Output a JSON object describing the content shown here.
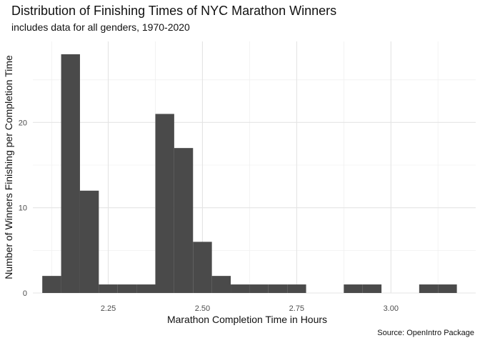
{
  "title": "Distribution of Finishing Times of NYC Marathon Winners",
  "subtitle": "includes data for all genders, 1970-2020",
  "caption": "Source: OpenIntro Package",
  "chart_data": {
    "type": "histogram",
    "xlabel": "Marathon Completion Time in Hours",
    "ylabel": "Number of Winners Finishing per Completion Time",
    "xlim": [
      2.05,
      3.225
    ],
    "ylim": [
      0,
      29.5
    ],
    "x_ticks": [
      2.25,
      2.5,
      2.75,
      3.0
    ],
    "x_tick_labels": [
      "2.25",
      "2.50",
      "2.75",
      "3.00"
    ],
    "y_ticks": [
      0,
      10,
      20
    ],
    "y_tick_labels": [
      "0",
      "10",
      "20"
    ],
    "grid": true,
    "bar_color": "#4a4a4a",
    "bins": [
      {
        "start": 2.075,
        "end": 2.125,
        "count": 2
      },
      {
        "start": 2.125,
        "end": 2.175,
        "count": 28
      },
      {
        "start": 2.175,
        "end": 2.225,
        "count": 12
      },
      {
        "start": 2.225,
        "end": 2.275,
        "count": 1
      },
      {
        "start": 2.275,
        "end": 2.325,
        "count": 1
      },
      {
        "start": 2.325,
        "end": 2.375,
        "count": 1
      },
      {
        "start": 2.375,
        "end": 2.425,
        "count": 21
      },
      {
        "start": 2.425,
        "end": 2.475,
        "count": 17
      },
      {
        "start": 2.475,
        "end": 2.525,
        "count": 6
      },
      {
        "start": 2.525,
        "end": 2.575,
        "count": 2
      },
      {
        "start": 2.575,
        "end": 2.625,
        "count": 1
      },
      {
        "start": 2.625,
        "end": 2.675,
        "count": 1
      },
      {
        "start": 2.675,
        "end": 2.725,
        "count": 1
      },
      {
        "start": 2.725,
        "end": 2.775,
        "count": 1
      },
      {
        "start": 2.775,
        "end": 2.825,
        "count": 0
      },
      {
        "start": 2.825,
        "end": 2.875,
        "count": 0
      },
      {
        "start": 2.875,
        "end": 2.925,
        "count": 1
      },
      {
        "start": 2.925,
        "end": 2.975,
        "count": 1
      },
      {
        "start": 2.975,
        "end": 3.025,
        "count": 0
      },
      {
        "start": 3.025,
        "end": 3.075,
        "count": 0
      },
      {
        "start": 3.075,
        "end": 3.125,
        "count": 1
      },
      {
        "start": 3.125,
        "end": 3.175,
        "count": 1
      }
    ]
  }
}
